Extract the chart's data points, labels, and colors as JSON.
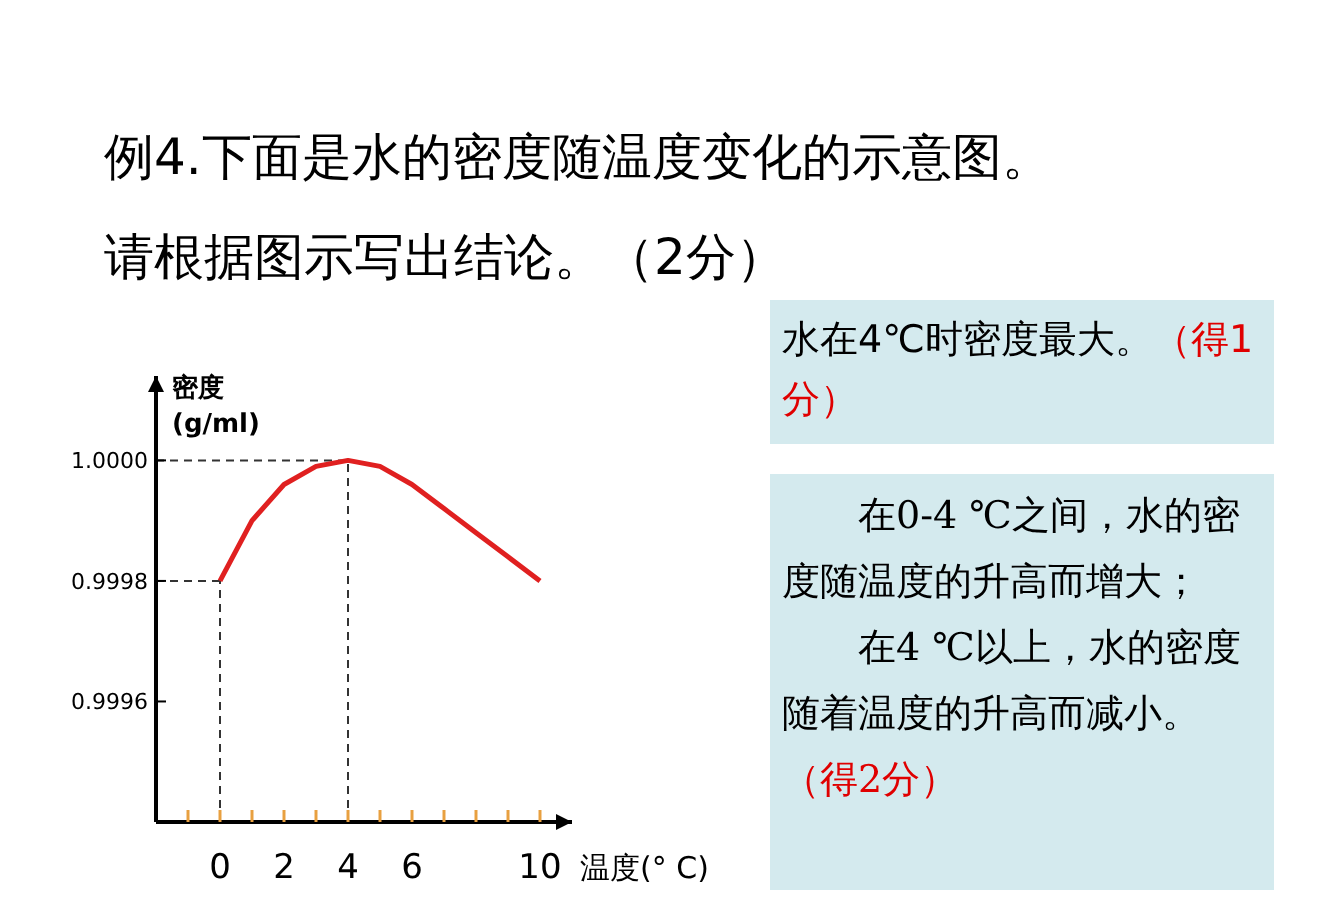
{
  "chart_data": {
    "type": "line",
    "title": "例4.下面是水的密度随温度变化的示意图。",
    "subtitle": "请根据图示写出结论。（2分）",
    "ylabel": "密度 (g/ml)",
    "xlabel": "温度(° C)",
    "annotations": [
      "水在4℃时密度最大。",
      "（得1分）",
      "在0-4 ℃之间，水的密度随温度的升高而增大；",
      "在4 ℃以上，水的密度随着温度的升高而减小。",
      "（得2分）"
    ],
    "x": [
      0,
      1,
      2,
      3,
      4,
      5,
      6,
      7,
      8,
      9,
      10
    ],
    "series": [
      {
        "color": "#e02020",
        "values": [
          0.9998,
          0.9999,
          0.99996,
          0.99999,
          1.0,
          0.99999,
          0.99996,
          0.99992,
          0.99988,
          0.99984,
          0.9998
        ]
      }
    ],
    "xlim": [
      -2,
      11
    ],
    "xticks": [
      {
        "value": -1,
        "label": null
      },
      0,
      {
        "value": 1,
        "label": null
      },
      2,
      {
        "value": 3,
        "label": null
      },
      4,
      {
        "value": 5,
        "label": null
      },
      6,
      {
        "value": 7,
        "label": null
      },
      {
        "value": 8,
        "label": null
      },
      {
        "value": 9,
        "label": null
      },
      10
    ],
    "ylim": [
      0.9994,
      1.00014
    ],
    "yticks": [
      {
        "value": 1,
        "label": "1.0000"
      },
      {
        "value": 0.9998,
        "label": "0.9998"
      },
      {
        "value": 0.9996,
        "label": "0.9996"
      }
    ],
    "ref_lines": [
      {
        "axis": "x",
        "value": 0,
        "line_style": "dashed",
        "color": "#333333"
      },
      {
        "axis": "y",
        "value": 0.9998,
        "line_style": "dashed",
        "color": "#333333"
      },
      {
        "axis": "x",
        "value": 4,
        "line_style": "dashed",
        "color": "#333333"
      },
      {
        "axis": "y",
        "value": 1.0,
        "line_style": "dashed",
        "color": "#333333"
      }
    ],
    "marker": "none",
    "line_style": "solid"
  }
}
